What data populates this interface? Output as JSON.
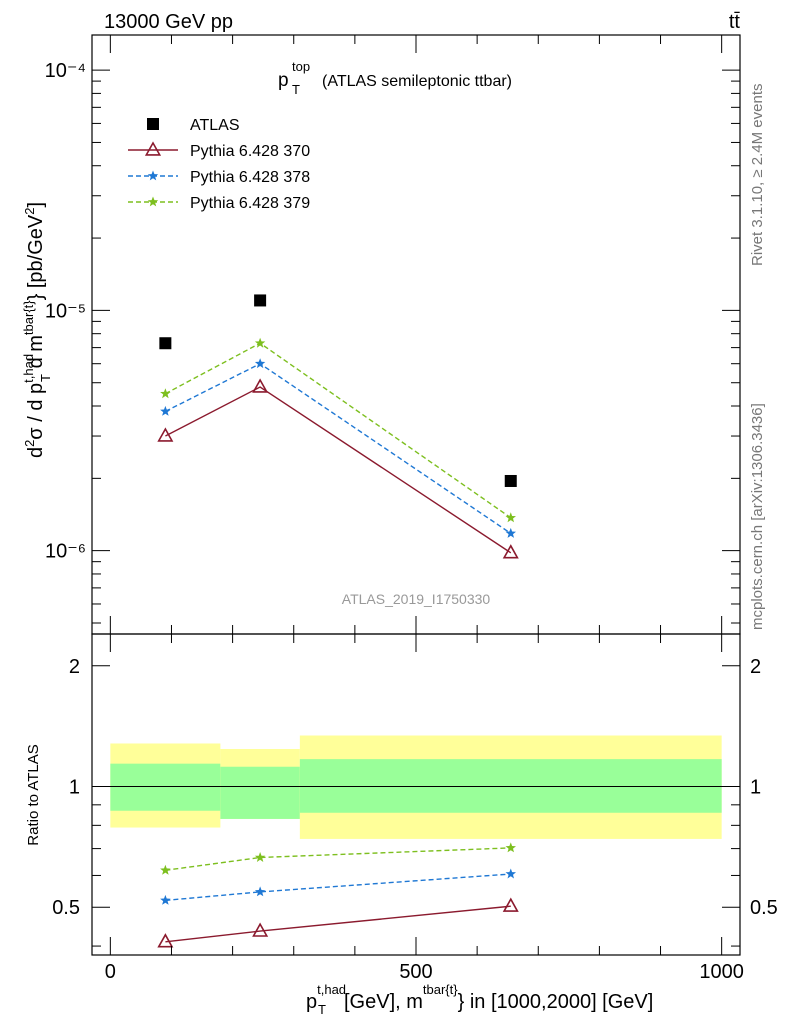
{
  "header": {
    "energy": "13000 GeV pp",
    "process": "tt̄",
    "side_top": "Rivet 3.1.10, ≥ 2.4M events",
    "side_bottom": "mcplots.cern.ch [arXiv:1306.3436]",
    "watermark": "ATLAS_2019_I1750330"
  },
  "plot_title": {
    "main": "p",
    "sup": "top",
    "sub": "T",
    "rest": "(ATLAS semileptonic ttbar)"
  },
  "axes": {
    "ylabel_top": "d²σ / d p_T^{t,had} d m^{tbar{t}} [pb/GeV²]",
    "ylabel_bottom": "Ratio to ATLAS",
    "xlabel": "p_T^{t,had} [GeV], m^{tbar{t}} in [1000,2000] [GeV]",
    "top_ytick_labels": [
      "10⁻⁴",
      "10⁻⁵",
      "10⁻⁶"
    ],
    "bottom_ytick_labels": [
      "0.5",
      "1",
      "2"
    ],
    "xtick_labels": [
      "0",
      "500",
      "1000"
    ]
  },
  "legend": [
    {
      "label": "ATLAS",
      "color": "#000000",
      "marker": "square"
    },
    {
      "label": "Pythia 6.428 370",
      "color": "#8b1a2e",
      "marker": "open-triangle"
    },
    {
      "label": "Pythia 6.428 378",
      "color": "#1f78d4",
      "marker": "star"
    },
    {
      "label": "Pythia 6.428 379",
      "color": "#7dbf1f",
      "marker": "star"
    }
  ],
  "chart_data": [
    {
      "type": "scatter",
      "yscale": "log",
      "ylim": [
        4.5e-07,
        0.00014
      ],
      "xlim": [
        -30,
        1030
      ],
      "x": [
        90,
        245,
        655
      ],
      "series": [
        {
          "name": "ATLAS",
          "values": [
            7.3e-06,
            1.1e-05,
            1.95e-06
          ],
          "style": "markers"
        },
        {
          "name": "Pythia 6.428 370",
          "values": [
            3e-06,
            4.8e-06,
            9.8e-07
          ],
          "style": "solid"
        },
        {
          "name": "Pythia 6.428 378",
          "values": [
            3.8e-06,
            6e-06,
            1.18e-06
          ],
          "style": "dashed"
        },
        {
          "name": "Pythia 6.428 379",
          "values": [
            4.5e-06,
            7.3e-06,
            1.37e-06
          ],
          "style": "dashed"
        }
      ]
    },
    {
      "type": "line",
      "yscale": "log",
      "ylim": [
        0.38,
        2.4
      ],
      "xlim": [
        -30,
        1030
      ],
      "x": [
        90,
        245,
        655
      ],
      "bands": [
        {
          "x0": 0,
          "x1": 180,
          "inner": [
            0.87,
            1.14
          ],
          "outer": [
            0.79,
            1.28
          ]
        },
        {
          "x0": 180,
          "x1": 310,
          "inner": [
            0.83,
            1.12
          ],
          "outer": [
            0.83,
            1.24
          ]
        },
        {
          "x0": 310,
          "x1": 1000,
          "inner": [
            0.86,
            1.17
          ],
          "outer": [
            0.74,
            1.34
          ]
        }
      ],
      "series": [
        {
          "name": "Pythia 6.428 370",
          "values": [
            0.41,
            0.436,
            0.503
          ],
          "style": "solid"
        },
        {
          "name": "Pythia 6.428 378",
          "values": [
            0.52,
            0.546,
            0.605
          ],
          "style": "dashed"
        },
        {
          "name": "Pythia 6.428 379",
          "values": [
            0.618,
            0.665,
            0.703
          ],
          "style": "dashed"
        }
      ]
    }
  ]
}
